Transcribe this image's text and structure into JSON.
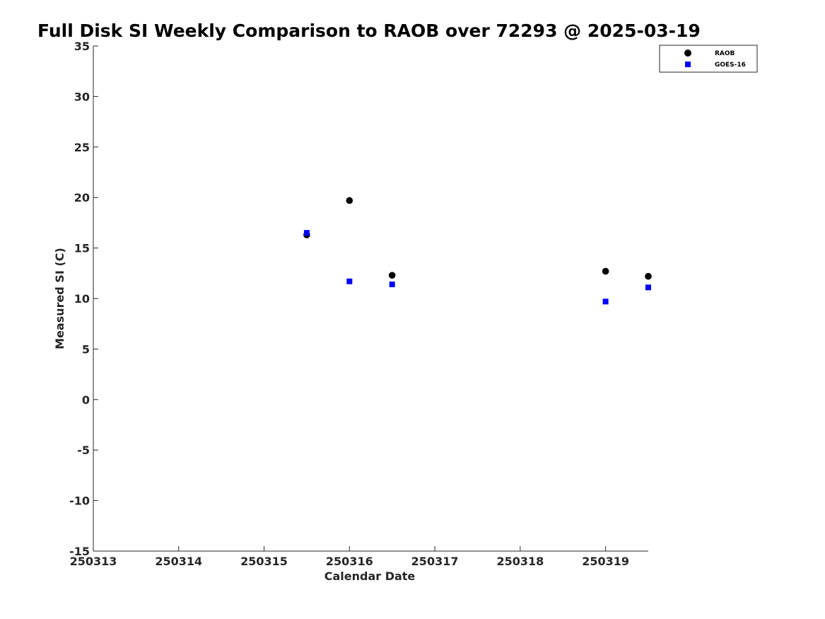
{
  "chart_data": {
    "type": "scatter",
    "title": "Full Disk SI Weekly Comparison to RAOB over 72293 @ 2025-03-19",
    "xlabel": "Calendar Date",
    "ylabel": "Measured SI (C)",
    "xlim": [
      250313,
      250319.5
    ],
    "ylim": [
      -15,
      35
    ],
    "x_ticks": [
      250313,
      250314,
      250315,
      250316,
      250317,
      250318,
      250319
    ],
    "x_tick_labels": [
      "250313",
      "250314",
      "250315",
      "250316",
      "250317",
      "250318",
      "250319"
    ],
    "y_ticks": [
      -15,
      -10,
      -5,
      0,
      5,
      10,
      15,
      20,
      25,
      30,
      35
    ],
    "y_tick_labels": [
      "-15",
      "-10",
      "-5",
      "0",
      "5",
      "10",
      "15",
      "20",
      "25",
      "30",
      "35"
    ],
    "grid": false,
    "legend_position": "top-right",
    "series": [
      {
        "name": "RAOB",
        "marker": "circle",
        "color": "#000000",
        "x": [
          250315.5,
          250316,
          250316.5,
          250319,
          250319.5
        ],
        "y": [
          16.3,
          19.7,
          12.3,
          12.7,
          12.2
        ]
      },
      {
        "name": "GOES-16",
        "marker": "square",
        "color": "#0000ff",
        "x": [
          250315.5,
          250316,
          250316.5,
          250319,
          250319.5
        ],
        "y": [
          16.5,
          11.7,
          11.4,
          9.7,
          11.1
        ]
      }
    ]
  }
}
